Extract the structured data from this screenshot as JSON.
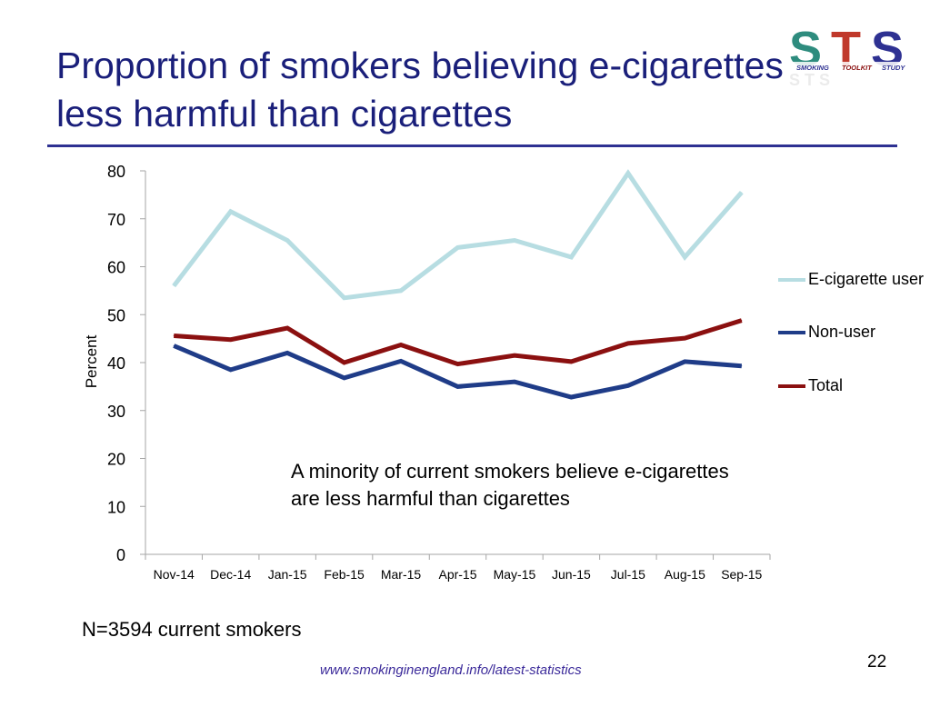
{
  "slide": {
    "title": "Proportion of smokers believing e-cigarettes less harmful than cigarettes",
    "footnote": "N=3594 current smokers",
    "source_url": "www.smokinginengland.info/latest-statistics",
    "page_number": "22",
    "annotation": "A minority of current smokers believe e-cigarettes are less harmful than cigarettes"
  },
  "logo": {
    "letters": "STS",
    "words": [
      "SMOKING",
      "TOOLKIT",
      "STUDY"
    ],
    "colors": {
      "s1": "#2e8c7e",
      "t": "#c0392b",
      "s2": "#2e3192"
    }
  },
  "chart_data": {
    "type": "line",
    "categories": [
      "Nov-14",
      "Dec-14",
      "Jan-15",
      "Feb-15",
      "Mar-15",
      "Apr-15",
      "May-15",
      "Jun-15",
      "Jul-15",
      "Aug-15",
      "Sep-15"
    ],
    "series": [
      {
        "name": "E-cigarette user",
        "color": "#b7dde2",
        "values": [
          56,
          71.5,
          65.5,
          53.5,
          55,
          64,
          65.5,
          62,
          79.5,
          62,
          75.5
        ]
      },
      {
        "name": "Non-user",
        "color": "#1f3c88",
        "values": [
          43.5,
          38.5,
          42,
          36.8,
          40.3,
          35,
          36,
          32.8,
          35.2,
          40.2,
          39.3
        ]
      },
      {
        "name": "Total",
        "color": "#8b1010",
        "values": [
          45.6,
          44.8,
          47.2,
          40,
          43.7,
          39.7,
          41.5,
          40.2,
          44,
          45.1,
          48.8
        ]
      }
    ],
    "ylabel": "Percent",
    "xlabel": "",
    "ylim": [
      0,
      80
    ],
    "yticks": [
      0,
      10,
      20,
      30,
      40,
      50,
      60,
      70,
      80
    ],
    "grid": false,
    "legend": "right"
  }
}
